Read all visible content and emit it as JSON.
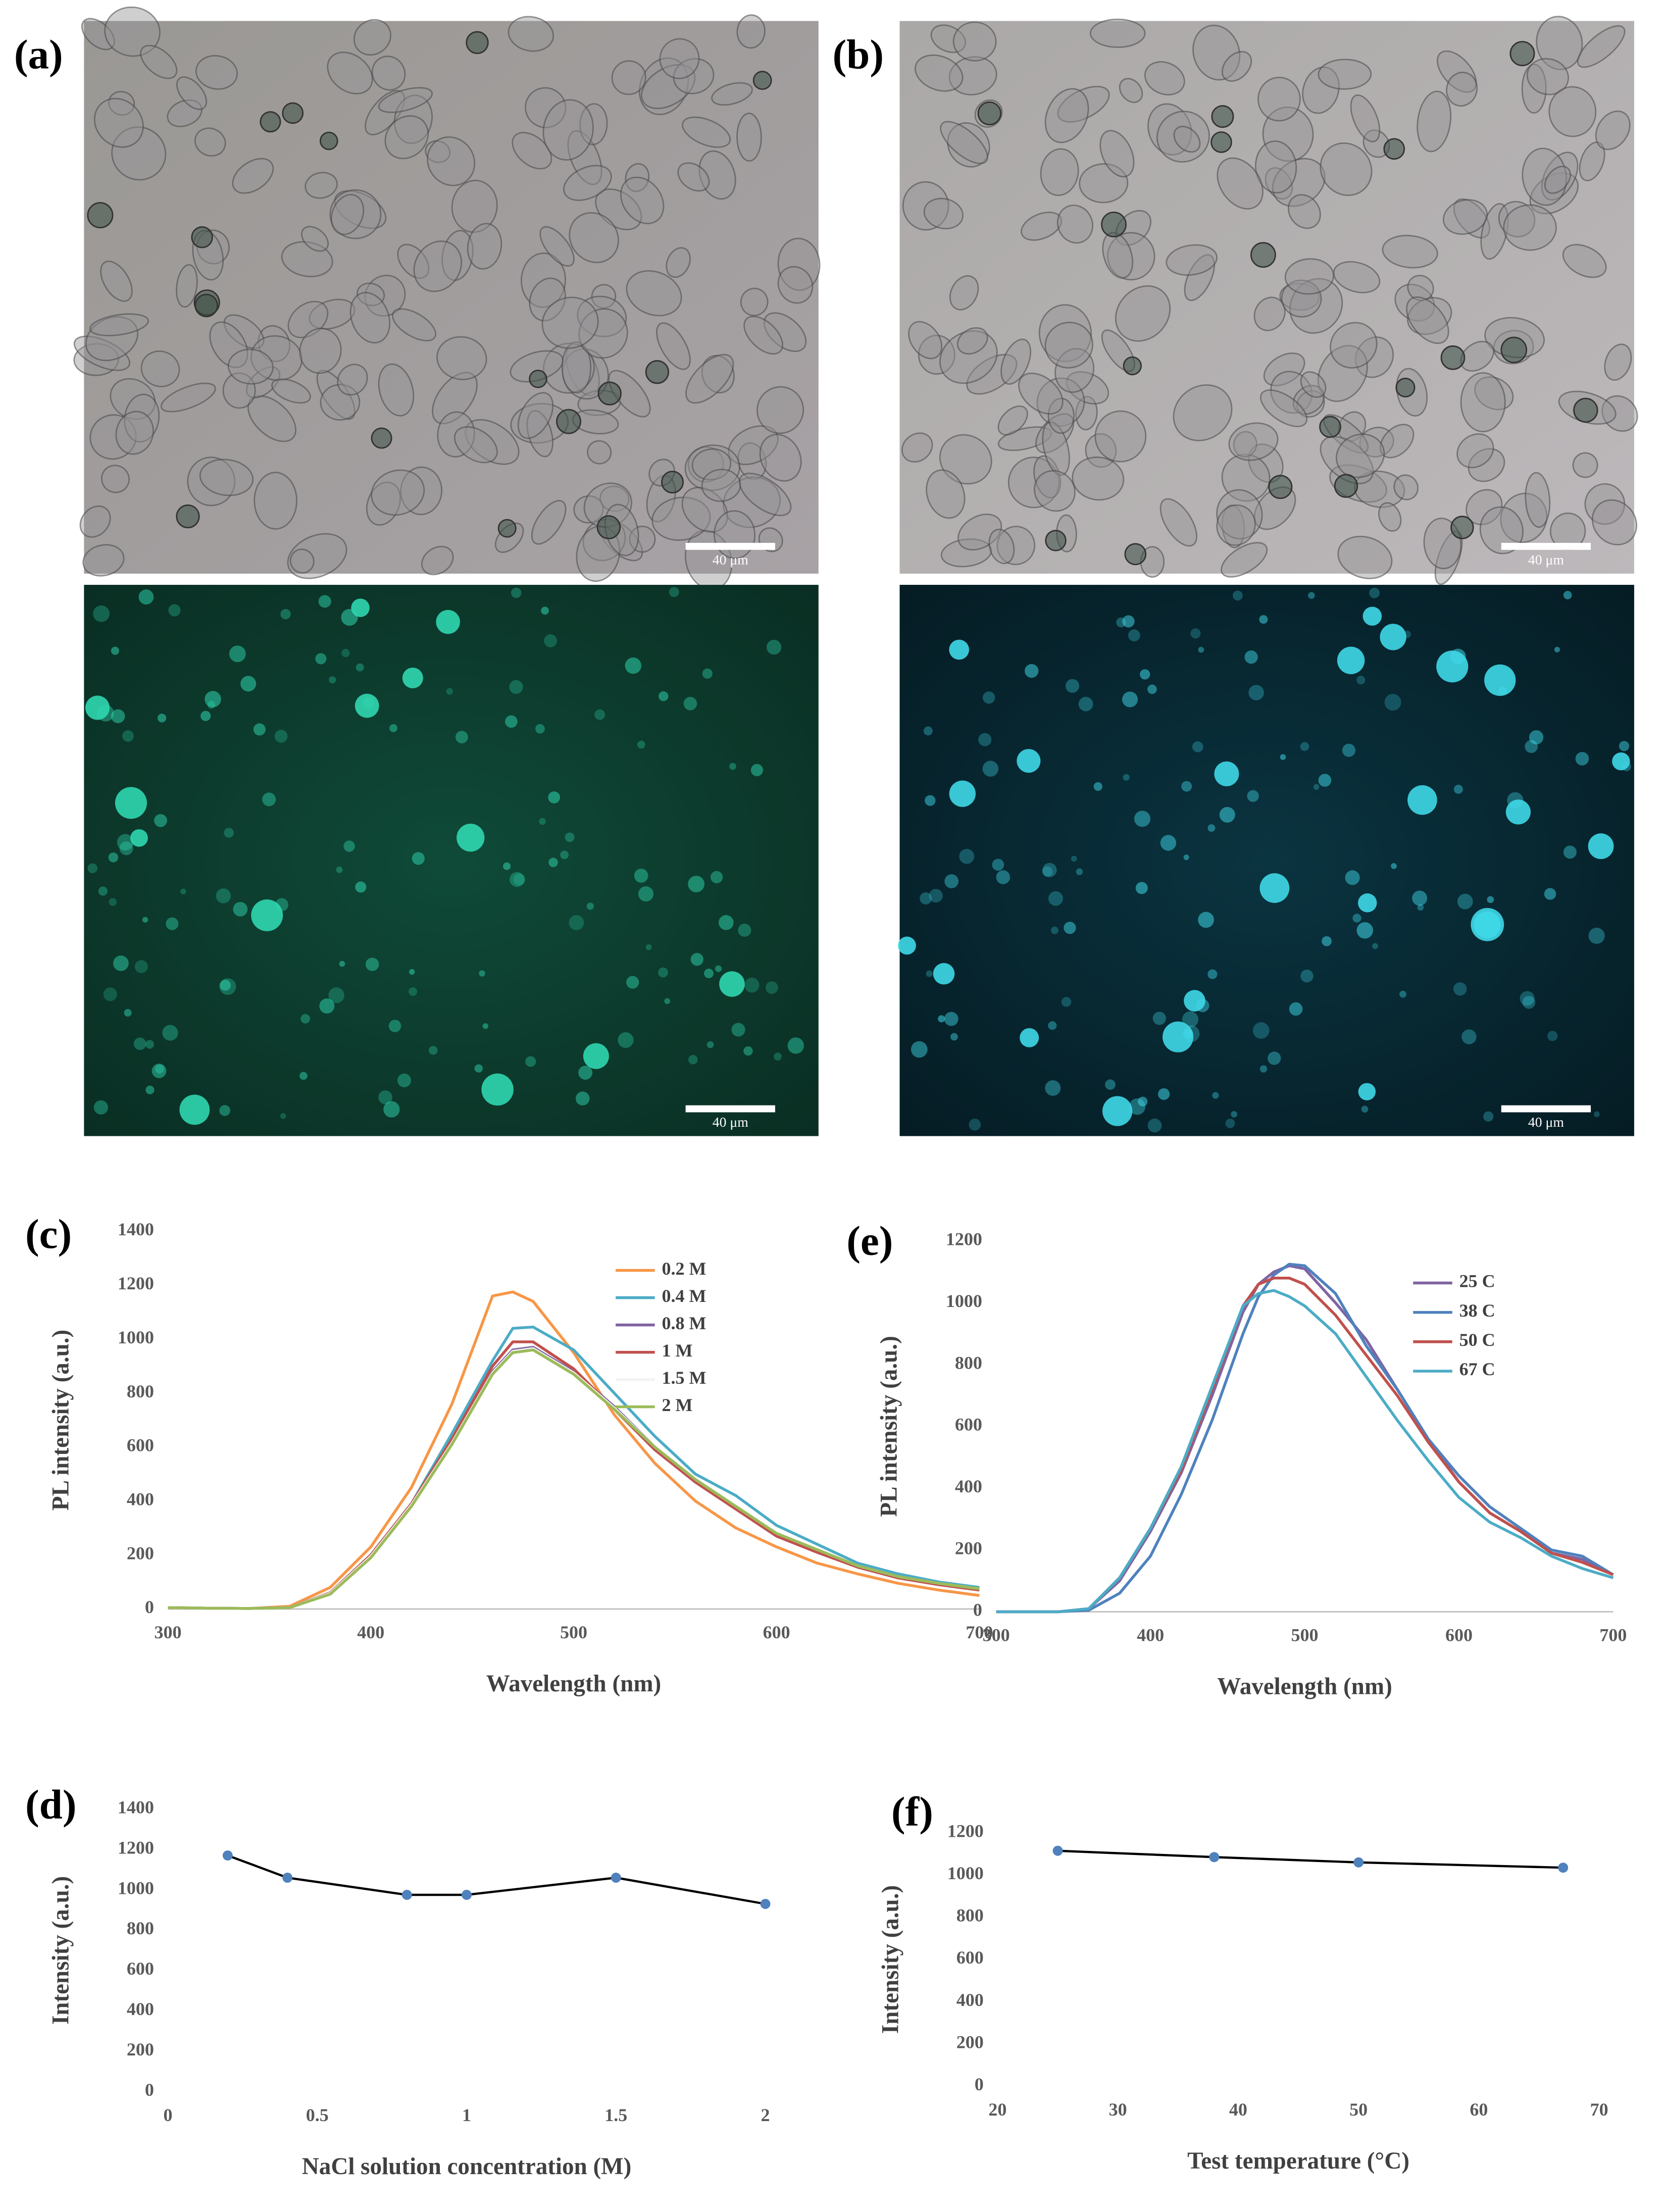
{
  "images": [
    {
      "label": "(a)",
      "scale_bars": [
        "40 μm",
        "40 μm"
      ]
    },
    {
      "label": "(b)",
      "scale_bars": [
        "40 μm",
        "40 μm"
      ]
    }
  ],
  "chart_data": [
    {
      "type": "line",
      "panel_label": "(c)",
      "x_label": "Wavelength (nm)",
      "y_label": "PL intensity (a.u.)",
      "x": [
        300,
        320,
        340,
        360,
        380,
        400,
        420,
        440,
        460,
        470,
        480,
        500,
        520,
        540,
        560,
        580,
        600,
        620,
        640,
        660,
        680,
        700
      ],
      "xlim": [
        300,
        700
      ],
      "xticks": [
        300,
        400,
        500,
        600,
        700
      ],
      "ylim": [
        0,
        1400
      ],
      "yticks": [
        0,
        200,
        400,
        600,
        800,
        1000,
        1200,
        1400
      ],
      "series": [
        {
          "name": "0.2 M",
          "color": "#f79646",
          "values": [
            5,
            3,
            2,
            10,
            80,
            230,
            450,
            760,
            1160,
            1175,
            1140,
            950,
            720,
            540,
            400,
            300,
            230,
            170,
            130,
            95,
            70,
            50
          ]
        },
        {
          "name": "0.4 M",
          "color": "#4bacc6",
          "values": [
            5,
            3,
            2,
            5,
            60,
            200,
            390,
            650,
            920,
            1040,
            1045,
            960,
            800,
            640,
            500,
            420,
            310,
            240,
            170,
            130,
            100,
            80
          ]
        },
        {
          "name": "0.8 M",
          "color": "#8064a2",
          "values": [
            5,
            3,
            2,
            5,
            60,
            200,
            390,
            620,
            880,
            960,
            970,
            880,
            750,
            600,
            480,
            380,
            280,
            220,
            160,
            120,
            95,
            75
          ]
        },
        {
          "name": "1 M",
          "color": "#c0504d",
          "values": [
            5,
            3,
            2,
            5,
            60,
            200,
            390,
            630,
            900,
            990,
            990,
            890,
            740,
            590,
            470,
            370,
            270,
            210,
            155,
            115,
            90,
            70
          ]
        },
        {
          "name": "1.5 M",
          "color": "#f2f2f2",
          "values": [
            5,
            3,
            2,
            5,
            58,
            195,
            385,
            615,
            875,
            955,
            965,
            875,
            745,
            600,
            480,
            380,
            280,
            220,
            160,
            120,
            95,
            75
          ]
        },
        {
          "name": "2 M",
          "color": "#9bbb59",
          "values": [
            5,
            3,
            2,
            5,
            55,
            190,
            380,
            610,
            870,
            950,
            960,
            870,
            740,
            600,
            480,
            380,
            280,
            220,
            160,
            120,
            95,
            75
          ]
        }
      ]
    },
    {
      "type": "line",
      "panel_label": "(d)",
      "x_label": "NaCl solution concentration (M)",
      "y_label": "Intensity (a.u.)",
      "x": [
        0.2,
        0.4,
        0.8,
        1,
        1.5,
        2
      ],
      "values": [
        1170,
        1060,
        975,
        975,
        1060,
        930
      ],
      "color": "#000000",
      "marker_color": "#4f81bd",
      "xlim": [
        0,
        2
      ],
      "xticks": [
        0,
        0.5,
        1,
        1.5,
        2
      ],
      "ylim": [
        0,
        1400
      ],
      "yticks": [
        0,
        200,
        400,
        600,
        800,
        1000,
        1200,
        1400
      ]
    },
    {
      "type": "line",
      "panel_label": "(e)",
      "x_label": "Wavelength (nm)",
      "y_label": "PL intensity (a.u.)",
      "x": [
        300,
        320,
        340,
        360,
        380,
        400,
        420,
        440,
        460,
        470,
        480,
        490,
        500,
        520,
        540,
        560,
        580,
        600,
        620,
        640,
        660,
        680,
        700
      ],
      "xlim": [
        300,
        700
      ],
      "xticks": [
        300,
        400,
        500,
        600,
        700
      ],
      "ylim": [
        0,
        1200
      ],
      "yticks": [
        0,
        200,
        400,
        600,
        800,
        1000,
        1200
      ],
      "series": [
        {
          "name": "25 C",
          "color": "#8064a2",
          "values": [
            0,
            0,
            0,
            10,
            100,
            260,
            450,
            700,
            970,
            1060,
            1100,
            1120,
            1110,
            1000,
            880,
            720,
            560,
            420,
            320,
            260,
            190,
            170,
            120
          ]
        },
        {
          "name": "38 C",
          "color": "#4f81bd",
          "values": [
            0,
            0,
            0,
            5,
            60,
            180,
            380,
            620,
            900,
            1020,
            1090,
            1125,
            1120,
            1030,
            860,
            720,
            560,
            440,
            340,
            270,
            200,
            180,
            120
          ]
        },
        {
          "name": "50 C",
          "color": "#c0504d",
          "values": [
            0,
            0,
            0,
            10,
            110,
            270,
            460,
            720,
            990,
            1060,
            1080,
            1080,
            1060,
            960,
            830,
            700,
            550,
            420,
            320,
            260,
            190,
            160,
            120
          ]
        },
        {
          "name": "67 C",
          "color": "#4bacc6",
          "values": [
            0,
            0,
            0,
            10,
            110,
            270,
            470,
            730,
            990,
            1030,
            1040,
            1020,
            990,
            900,
            760,
            620,
            490,
            370,
            290,
            240,
            180,
            140,
            110
          ]
        }
      ]
    },
    {
      "type": "line",
      "panel_label": "(f)",
      "x_label": "Test temperature (°C)",
      "y_label": "Intensity (a.u.)",
      "x": [
        25,
        38,
        50,
        67
      ],
      "values": [
        1115,
        1085,
        1060,
        1035
      ],
      "color": "#000000",
      "marker_color": "#4f81bd",
      "xlim": [
        20,
        70
      ],
      "xticks": [
        20,
        30,
        40,
        50,
        60,
        70
      ],
      "ylim": [
        0,
        1200
      ],
      "yticks": [
        0,
        200,
        400,
        600,
        800,
        1000,
        1200
      ]
    }
  ]
}
